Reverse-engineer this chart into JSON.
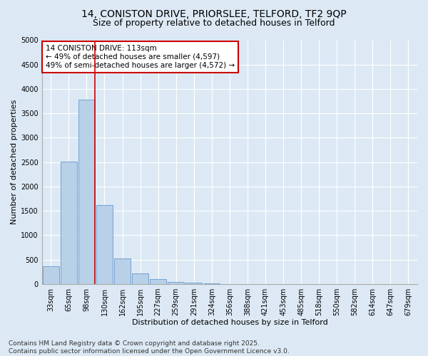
{
  "title_line1": "14, CONISTON DRIVE, PRIORSLEE, TELFORD, TF2 9QP",
  "title_line2": "Size of property relative to detached houses in Telford",
  "xlabel": "Distribution of detached houses by size in Telford",
  "ylabel": "Number of detached properties",
  "categories": [
    "33sqm",
    "65sqm",
    "98sqm",
    "130sqm",
    "162sqm",
    "195sqm",
    "227sqm",
    "259sqm",
    "291sqm",
    "324sqm",
    "356sqm",
    "388sqm",
    "421sqm",
    "453sqm",
    "485sqm",
    "518sqm",
    "550sqm",
    "582sqm",
    "614sqm",
    "647sqm",
    "679sqm"
  ],
  "values": [
    370,
    2510,
    3780,
    1620,
    530,
    220,
    100,
    50,
    30,
    20,
    5,
    5,
    0,
    0,
    0,
    0,
    0,
    0,
    0,
    0,
    0
  ],
  "bar_color": "#b8d0e8",
  "bar_edge_color": "#6699cc",
  "vline_color": "#cc0000",
  "annotation_text": "14 CONISTON DRIVE: 113sqm\n← 49% of detached houses are smaller (4,597)\n49% of semi-detached houses are larger (4,572) →",
  "annotation_box_color": "#cc0000",
  "ylim": [
    0,
    5000
  ],
  "yticks": [
    0,
    500,
    1000,
    1500,
    2000,
    2500,
    3000,
    3500,
    4000,
    4500,
    5000
  ],
  "background_color": "#dce9f5",
  "plot_bg_color": "#dce9f5",
  "footer_text": "Contains HM Land Registry data © Crown copyright and database right 2025.\nContains public sector information licensed under the Open Government Licence v3.0.",
  "title_fontsize": 10,
  "subtitle_fontsize": 9,
  "axis_label_fontsize": 8,
  "tick_fontsize": 7,
  "annotation_fontsize": 7.5,
  "footer_fontsize": 6.5
}
